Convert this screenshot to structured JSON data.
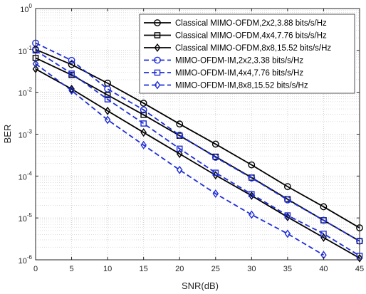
{
  "chart_data": {
    "type": "line",
    "xlabel": "SNR(dB)",
    "ylabel": "BER",
    "x_scale": "linear",
    "y_scale": "log",
    "xlim": [
      0,
      45
    ],
    "ylim": [
      1e-06,
      1
    ],
    "x_ticks": [
      0,
      5,
      10,
      15,
      20,
      25,
      30,
      35,
      40,
      45
    ],
    "x_tick_labels": [
      "0",
      "5",
      "10",
      "15",
      "20",
      "25",
      "30",
      "35",
      "40",
      "45"
    ],
    "y_ticks": [
      {
        "value": 1e-06,
        "base": "10",
        "exp": "-6"
      },
      {
        "value": 1e-05,
        "base": "10",
        "exp": "-5"
      },
      {
        "value": 0.0001,
        "base": "10",
        "exp": "-4"
      },
      {
        "value": 0.001,
        "base": "10",
        "exp": "-3"
      },
      {
        "value": 0.01,
        "base": "10",
        "exp": "-2"
      },
      {
        "value": 0.1,
        "base": "10",
        "exp": "-1"
      },
      {
        "value": 1,
        "base": "10",
        "exp": "0"
      }
    ],
    "grid": true,
    "minor_grid": true,
    "legend_position": "top-right",
    "x": [
      0,
      5,
      10,
      15,
      20,
      25,
      30,
      35,
      40,
      45
    ],
    "series": [
      {
        "name": "Classical MIMO-OFDM,2x2,3.88 bits/s/Hz",
        "color": "#000000",
        "dash": "solid",
        "marker": "circle",
        "values": [
          0.105,
          0.046,
          0.0165,
          0.0055,
          0.00175,
          0.00058,
          0.000185,
          5.6e-05,
          1.85e-05,
          5.8e-06
        ]
      },
      {
        "name": "Classical MIMO-OFDM,4x4,7.76 bits/s/Hz",
        "color": "#000000",
        "dash": "solid",
        "marker": "square",
        "values": [
          0.066,
          0.026,
          0.0086,
          0.0029,
          0.00092,
          0.00029,
          9.2e-05,
          2.8e-05,
          8.8e-06,
          2.8e-06
        ]
      },
      {
        "name": "Classical MIMO-OFDM,8x8,15.52 bits/s/Hz",
        "color": "#000000",
        "dash": "solid",
        "marker": "diamond",
        "values": [
          0.036,
          0.012,
          0.0036,
          0.0011,
          0.00034,
          0.000105,
          3.4e-05,
          1.05e-05,
          3.4e-06,
          1.1e-06
        ]
      },
      {
        "name": "MIMO-OFDM-IM,2x2,3.38 bits/s/Hz",
        "color": "#1f2ed8",
        "dash": "dashed",
        "marker": "circle",
        "values": [
          0.15,
          0.058,
          0.012,
          0.0038,
          0.00095,
          0.00028,
          9e-05,
          2.7e-05,
          8.8e-06,
          2.8e-06
        ]
      },
      {
        "name": "MIMO-OFDM-IM,4x4,7.76 bits/s/Hz",
        "color": "#1f2ed8",
        "dash": "dashed",
        "marker": "square",
        "values": [
          0.1,
          0.028,
          0.0068,
          0.0018,
          0.00045,
          0.00012,
          3.7e-05,
          1.15e-05,
          4.2e-06,
          1.25e-06
        ]
      },
      {
        "name": "MIMO-OFDM-IM,8x8,15.52 bits/s/Hz",
        "color": "#1f2ed8",
        "dash": "dashed",
        "marker": "diamond",
        "values": [
          0.048,
          0.011,
          0.0022,
          0.00055,
          0.00014,
          3.8e-05,
          1.2e-05,
          4.2e-06,
          1.3e-06,
          null
        ]
      }
    ]
  }
}
